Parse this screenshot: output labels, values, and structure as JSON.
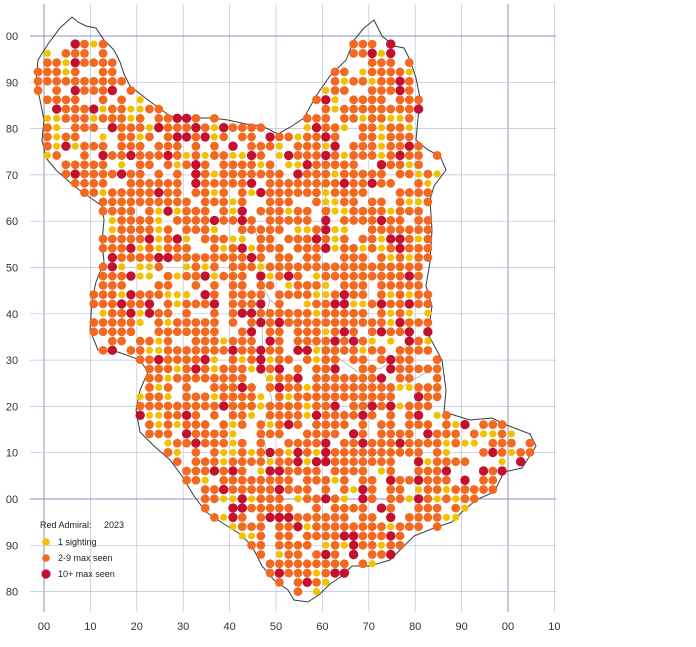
{
  "map": {
    "species": "Red Admiral:",
    "year": "2023",
    "x_axis_labels": [
      "00",
      "10",
      "20",
      "30",
      "40",
      "50",
      "60",
      "70",
      "80",
      "90",
      "00",
      "10"
    ],
    "y_axis_labels": [
      "00",
      "90",
      "80",
      "70",
      "60",
      "50",
      "40",
      "30",
      "20",
      "10",
      "00",
      "90",
      "80"
    ],
    "colors": {
      "one_sighting": "#f2c200",
      "two_to_nine": "#f26a22",
      "ten_plus": "#c2102e",
      "grid": "#b9c2dc",
      "border": "#3a3a3a"
    },
    "legend": [
      {
        "label": "1 sighting",
        "color_key": "one_sighting"
      },
      {
        "label": "2-9 max seen",
        "color_key": "two_to_nine"
      },
      {
        "label": "10+ max seen",
        "color_key": "ten_plus"
      }
    ]
  }
}
